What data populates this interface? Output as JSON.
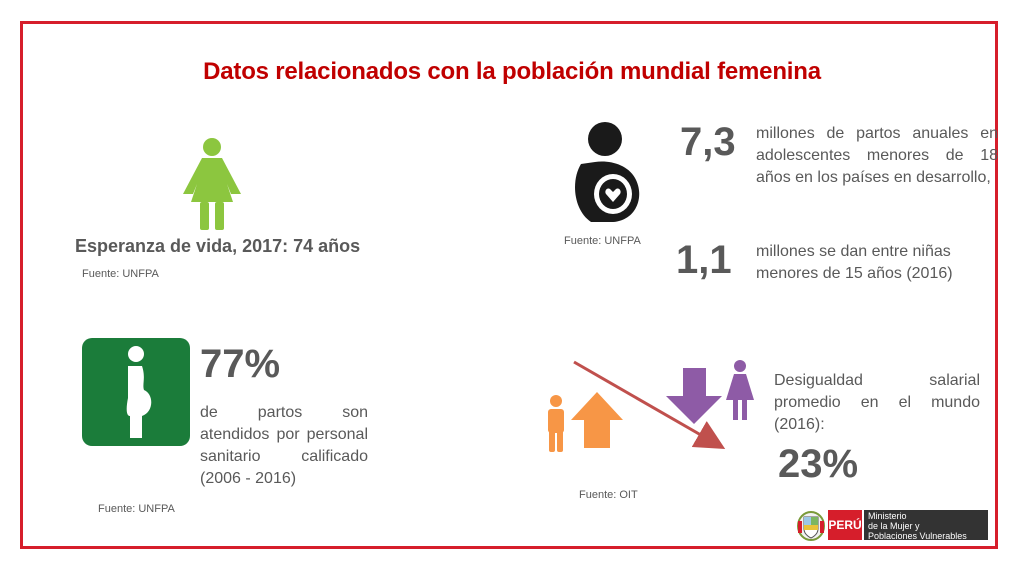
{
  "title": "Datos relacionados con la población mundial femenina",
  "life_expectancy": {
    "label": "Esperanza de vida, 2017: 74 años",
    "source": "Fuente: UNFPA",
    "icon": "woman-icon",
    "color": "#8cc63f"
  },
  "adolescent_births": {
    "source": "Fuente: UNFPA",
    "icon": "mother-baby-icon",
    "stat1": {
      "value": "7,3",
      "text": "millones de partos anuales en adolescentes menores de 18 años en los países en desarrollo,"
    },
    "stat2": {
      "value": "1,1",
      "text": "millones se dan entre niñas menores de 15 años (2016)"
    }
  },
  "attended_births": {
    "value": "77%",
    "text": "de partos son atendidos por personal sanitario calificado (2006 - 2016)",
    "source": "Fuente: UNFPA",
    "icon": "pregnant-woman-icon",
    "color": "#1b7c3a"
  },
  "wage_gap": {
    "text": "Desigualdad salarial promedio en el mundo (2016):",
    "value": "23%",
    "source": "Fuente: OIT",
    "colors": {
      "man": "#f79646",
      "woman": "#8e5ba6",
      "arrow_line": "#c0504d"
    }
  },
  "logo": {
    "country": "PERÚ",
    "ministry_lines": [
      "Ministerio",
      "de la Mujer y",
      "Poblaciones Vulnerables"
    ]
  }
}
